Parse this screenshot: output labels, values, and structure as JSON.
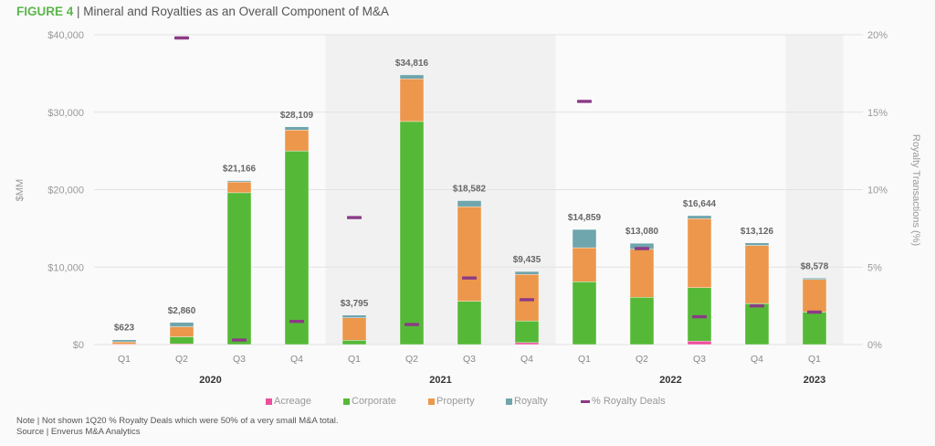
{
  "title": {
    "figure": "FIGURE 4",
    "separator": " | ",
    "text": "Mineral and Royalties as an Overall Component of M&A"
  },
  "notes": {
    "note": "Note | Not shown 1Q20 % Royalty Deals which were 50% of a very small M&A total.",
    "source": "Source | Enverus M&A Analytics"
  },
  "colors": {
    "Acreage": "#ee4f9c",
    "Corporate": "#55b937",
    "Property": "#ec974b",
    "Royalty": "#6fa5ad",
    "% Royalty Deals": "#8b3a86",
    "shade": "#f1f1f1",
    "grid": "#e2e2e2",
    "title_accent": "#5bb64a"
  },
  "legend": [
    {
      "name": "Acreage",
      "type": "square"
    },
    {
      "name": "Corporate",
      "type": "square"
    },
    {
      "name": "Property",
      "type": "square"
    },
    {
      "name": "Royalty",
      "type": "square"
    },
    {
      "name": "% Royalty Deals",
      "type": "line"
    }
  ],
  "chart_data": {
    "type": "bar",
    "stacked": true,
    "title": "Mineral and Royalties as an Overall Component of M&A",
    "xlabel": "",
    "ylabel": "$MM",
    "y2label": "Royalty Transactions (%)",
    "ylim": [
      0,
      40000
    ],
    "y2lim": [
      0,
      20
    ],
    "yticks": [
      "$0",
      "$10,000",
      "$20,000",
      "$30,000",
      "$40,000"
    ],
    "y2ticks": [
      "0%",
      "5%",
      "10%",
      "15%",
      "20%"
    ],
    "grid": true,
    "legend_position": "bottom",
    "categories": [
      "Q1",
      "Q2",
      "Q3",
      "Q4",
      "Q1",
      "Q2",
      "Q3",
      "Q4",
      "Q1",
      "Q2",
      "Q3",
      "Q4",
      "Q1"
    ],
    "years": [
      {
        "label": "2020",
        "span": [
          0,
          3
        ],
        "shaded": false
      },
      {
        "label": "2021",
        "span": [
          4,
          7
        ],
        "shaded": true
      },
      {
        "label": "2022",
        "span": [
          8,
          11
        ],
        "shaded": false
      },
      {
        "label": "2023",
        "span": [
          12,
          12
        ],
        "shaded": true
      }
    ],
    "totals": [
      "$623",
      "$2,860",
      "$21,166",
      "$28,109",
      "$3,795",
      "$34,816",
      "$18,582",
      "$9,435",
      "$14,859",
      "$13,080",
      "$16,644",
      "$13,126",
      "$8,578"
    ],
    "series": [
      {
        "name": "Acreage",
        "axis": "left",
        "values": [
          50,
          100,
          0,
          0,
          0,
          0,
          0,
          250,
          0,
          0,
          450,
          0,
          0
        ]
      },
      {
        "name": "Corporate",
        "axis": "left",
        "values": [
          0,
          900,
          19600,
          25000,
          550,
          28800,
          5600,
          2800,
          8100,
          6100,
          6900,
          5300,
          4200
        ]
      },
      {
        "name": "Property",
        "axis": "left",
        "values": [
          300,
          1300,
          1400,
          2700,
          2900,
          5500,
          12200,
          6000,
          4400,
          6200,
          8900,
          7500,
          4200
        ]
      },
      {
        "name": "Royalty",
        "axis": "left",
        "values": [
          273,
          560,
          166,
          409,
          345,
          516,
          782,
          385,
          2359,
          780,
          394,
          326,
          178
        ]
      },
      {
        "name": "% Royalty Deals",
        "axis": "right",
        "type": "marker",
        "values": [
          null,
          19.8,
          0.3,
          1.5,
          8.2,
          1.3,
          4.3,
          2.9,
          15.7,
          6.2,
          1.8,
          2.5,
          2.1
        ]
      }
    ]
  }
}
